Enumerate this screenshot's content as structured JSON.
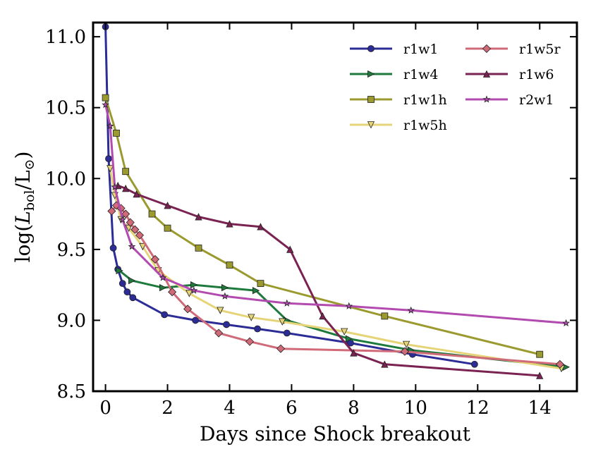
{
  "chart_data": {
    "type": "line",
    "title": "",
    "xlabel": "Days since Shock breakout",
    "ylabel": {
      "prefix": "log(",
      "var": "L",
      "sub": "bol",
      "mid": "/L",
      "sun": "⊙",
      "suffix": ")"
    },
    "xlim": [
      -0.4,
      15.2
    ],
    "ylim": [
      8.5,
      11.1
    ],
    "xticks": [
      0,
      2,
      4,
      6,
      8,
      10,
      12,
      14
    ],
    "yticks": [
      8.5,
      9.0,
      9.5,
      10.0,
      10.5,
      11.0
    ],
    "xtick_labels": [
      "0",
      "2",
      "4",
      "6",
      "8",
      "10",
      "12",
      "14"
    ],
    "ytick_labels": [
      "8.5",
      "9.0",
      "9.5",
      "10.0",
      "10.5",
      "11.0"
    ],
    "legend_position": "top-right",
    "series": [
      {
        "name": "r1w1",
        "color": "#2c2c96",
        "marker": "circle",
        "x": [
          0.0,
          0.1,
          0.25,
          0.4,
          0.55,
          0.7,
          0.88,
          1.9,
          2.9,
          3.9,
          4.9,
          5.85,
          7.9,
          9.9,
          11.9
        ],
        "y": [
          11.07,
          10.14,
          9.51,
          9.36,
          9.26,
          9.2,
          9.16,
          9.04,
          9.0,
          8.97,
          8.94,
          8.91,
          8.84,
          8.76,
          8.69
        ]
      },
      {
        "name": "r1w4",
        "color": "#1e7a3c",
        "marker": "triangle-right",
        "x": [
          0.45,
          0.85,
          1.85,
          2.85,
          3.85,
          4.85,
          5.85,
          7.85,
          9.85,
          14.85
        ],
        "y": [
          9.35,
          9.28,
          9.23,
          9.25,
          9.23,
          9.21,
          9.0,
          8.87,
          8.79,
          8.67
        ]
      },
      {
        "name": "r1w1h",
        "color": "#9a9a2e",
        "marker": "square",
        "x": [
          0.0,
          0.35,
          0.65,
          1.5,
          2.0,
          3.0,
          4.0,
          5.0,
          9.0,
          14.0
        ],
        "y": [
          10.57,
          10.32,
          10.05,
          9.75,
          9.65,
          9.51,
          9.39,
          9.26,
          9.03,
          8.76
        ]
      },
      {
        "name": "r1w5h",
        "color": "#e6d478",
        "marker": "triangle-down",
        "x": [
          0.15,
          0.3,
          0.5,
          0.75,
          1.2,
          1.7,
          2.7,
          3.7,
          4.7,
          5.7,
          7.7,
          9.7,
          14.7
        ],
        "y": [
          10.07,
          9.88,
          9.71,
          9.65,
          9.52,
          9.35,
          9.19,
          9.07,
          9.02,
          8.99,
          8.92,
          8.83,
          8.66
        ]
      },
      {
        "name": "r1w5r",
        "color": "#d06a78",
        "marker": "diamond",
        "x": [
          0.2,
          0.35,
          0.5,
          0.65,
          0.8,
          0.95,
          1.1,
          1.6,
          2.15,
          2.65,
          3.65,
          4.65,
          5.65,
          9.65,
          14.65
        ],
        "y": [
          9.77,
          9.81,
          9.79,
          9.75,
          9.69,
          9.64,
          9.6,
          9.43,
          9.2,
          9.08,
          8.91,
          8.85,
          8.8,
          8.78,
          8.69
        ]
      },
      {
        "name": "r1w6",
        "color": "#7a2252",
        "marker": "triangle-up",
        "x": [
          0.4,
          0.65,
          1.0,
          2.0,
          3.0,
          4.0,
          5.0,
          5.95,
          7.0,
          8.0,
          9.0,
          14.0
        ],
        "y": [
          9.95,
          9.93,
          9.89,
          9.81,
          9.73,
          9.68,
          9.66,
          9.5,
          9.03,
          8.77,
          8.69,
          8.61
        ]
      },
      {
        "name": "r2w1",
        "color": "#b24ab0",
        "marker": "star",
        "x": [
          0.0,
          0.15,
          0.3,
          0.55,
          0.85,
          1.85,
          2.85,
          3.85,
          5.85,
          7.85,
          9.85,
          14.85
        ],
        "y": [
          10.52,
          10.37,
          9.94,
          9.71,
          9.52,
          9.3,
          9.21,
          9.17,
          9.12,
          9.1,
          9.07,
          8.98
        ]
      }
    ]
  }
}
